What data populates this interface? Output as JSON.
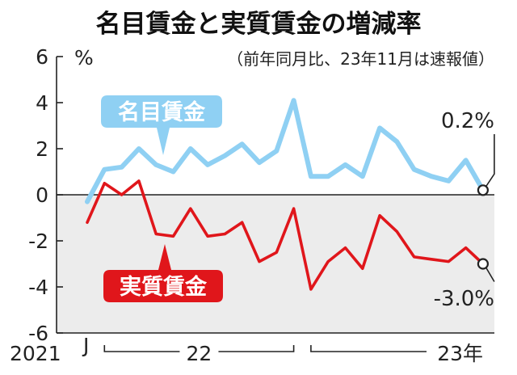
{
  "chart_data": {
    "type": "line",
    "title": "名目賃金と実質賃金の増減率",
    "subtitle": "（前年同月比、23年11月は速報値）",
    "ylabel": "%",
    "ylim": [
      -6,
      6
    ],
    "yticks": [
      "6",
      "4",
      "2",
      "0",
      "-2",
      "-4",
      "-6"
    ],
    "x": [
      "2021-12",
      "2022-01",
      "2022-02",
      "2022-03",
      "2022-04",
      "2022-05",
      "2022-06",
      "2022-07",
      "2022-08",
      "2022-09",
      "2022-10",
      "2022-11",
      "2022-12",
      "2023-01",
      "2023-02",
      "2023-03",
      "2023-04",
      "2023-05",
      "2023-06",
      "2023-07",
      "2023-08",
      "2023-09",
      "2023-10",
      "2023-11"
    ],
    "x_axis": {
      "year_2021": "2021",
      "year_2022": "22",
      "year_2023": "23年",
      "month_mark": "J"
    },
    "series": [
      {
        "name": "名目賃金",
        "color": "#8fd0f3",
        "values": [
          -0.3,
          1.1,
          1.2,
          2.0,
          1.3,
          1.0,
          2.0,
          1.3,
          1.7,
          2.2,
          1.4,
          1.9,
          4.1,
          0.8,
          0.8,
          1.3,
          0.8,
          2.9,
          2.3,
          1.1,
          0.8,
          0.6,
          1.5,
          0.2
        ]
      },
      {
        "name": "実質賃金",
        "color": "#e0161b",
        "values": [
          -1.2,
          0.5,
          0.0,
          0.6,
          -1.7,
          -1.8,
          -0.6,
          -1.8,
          -1.7,
          -1.2,
          -2.9,
          -2.5,
          -0.6,
          -4.1,
          -2.9,
          -2.3,
          -3.2,
          -0.9,
          -1.6,
          -2.7,
          -2.8,
          -2.9,
          -2.3,
          -3.0
        ]
      }
    ],
    "callouts": {
      "nominal_last": "0.2%",
      "real_last": "-3.0%"
    },
    "colors": {
      "negative_area": "#ececec",
      "axis": "#222222"
    }
  }
}
